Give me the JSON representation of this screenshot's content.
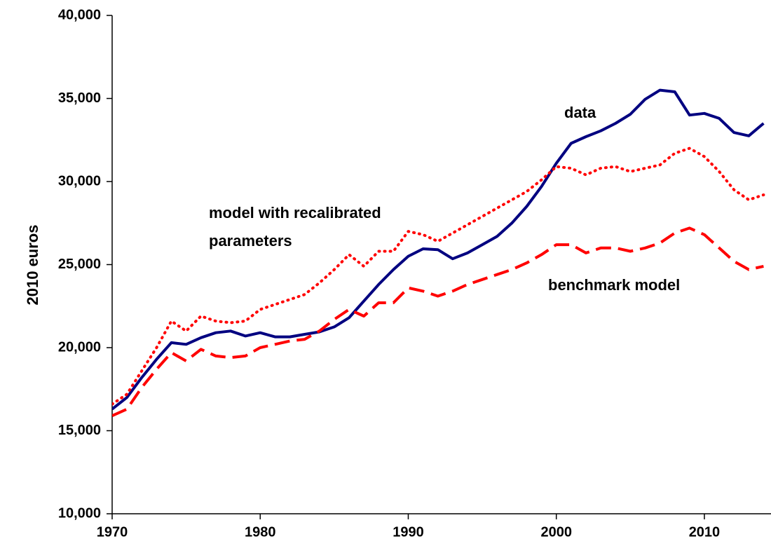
{
  "chart_data": {
    "type": "line",
    "y_label": "2010 euros",
    "x": [
      1970,
      1971,
      1972,
      1973,
      1974,
      1975,
      1976,
      1977,
      1978,
      1979,
      1980,
      1981,
      1982,
      1983,
      1984,
      1985,
      1986,
      1987,
      1988,
      1989,
      1990,
      1991,
      1992,
      1993,
      1994,
      1995,
      1996,
      1997,
      1998,
      1999,
      2000,
      2001,
      2002,
      2003,
      2004,
      2005,
      2006,
      2007,
      2008,
      2009,
      2010,
      2011,
      2012,
      2013,
      2014
    ],
    "series": [
      {
        "name": "data",
        "color": "#000080",
        "style": "solid",
        "values": [
          16300,
          17000,
          18200,
          19300,
          20300,
          20200,
          20600,
          20900,
          21000,
          20700,
          20900,
          20650,
          20650,
          20800,
          20950,
          21250,
          21800,
          22800,
          23800,
          24700,
          25500,
          25950,
          25900,
          25350,
          25700,
          26200,
          26700,
          27500,
          28500,
          29700,
          31100,
          32300,
          32700,
          33050,
          33500,
          34050,
          34950,
          35500,
          35400,
          34000,
          34100,
          33800,
          32950,
          32750,
          33500
        ]
      },
      {
        "name": [
          "model with recalibrated",
          "parameters"
        ],
        "color": "#ff0000",
        "style": "dotted",
        "values": [
          16600,
          17200,
          18600,
          20000,
          21600,
          21000,
          21900,
          21600,
          21500,
          21600,
          22300,
          22600,
          22900,
          23200,
          23900,
          24700,
          25600,
          24900,
          25800,
          25800,
          27000,
          26800,
          26400,
          26900,
          27400,
          27900,
          28400,
          28900,
          29400,
          30100,
          30900,
          30800,
          30400,
          30800,
          30900,
          30600,
          30800,
          31000,
          31700,
          32000,
          31500,
          30600,
          29500,
          28900,
          29200
        ]
      },
      {
        "name": "benchmark model",
        "color": "#ff0000",
        "style": "dashed",
        "values": [
          15900,
          16300,
          17600,
          18700,
          19700,
          19200,
          19900,
          19500,
          19400,
          19500,
          20000,
          20200,
          20400,
          20500,
          21000,
          21700,
          22300,
          21900,
          22700,
          22700,
          23600,
          23400,
          23100,
          23400,
          23800,
          24100,
          24400,
          24700,
          25100,
          25600,
          26200,
          26200,
          25700,
          26000,
          26000,
          25800,
          26000,
          26300,
          26900,
          27200,
          26800,
          26000,
          25200,
          24700,
          24900
        ]
      }
    ],
    "xlim": [
      1970,
      2014.5
    ],
    "xticks": [
      1970,
      1980,
      1990,
      2000,
      2010
    ],
    "ylim": [
      10000,
      40000
    ],
    "yticks": [
      {
        "value": 10000,
        "label": "10,000"
      },
      {
        "value": 15000,
        "label": "15,000"
      },
      {
        "value": 20000,
        "label": "20,000"
      },
      {
        "value": 25000,
        "label": "25,000"
      },
      {
        "value": 30000,
        "label": "30,000"
      },
      {
        "value": 35000,
        "label": "35,000"
      },
      {
        "value": 40000,
        "label": "40,000"
      }
    ],
    "grid": false
  }
}
